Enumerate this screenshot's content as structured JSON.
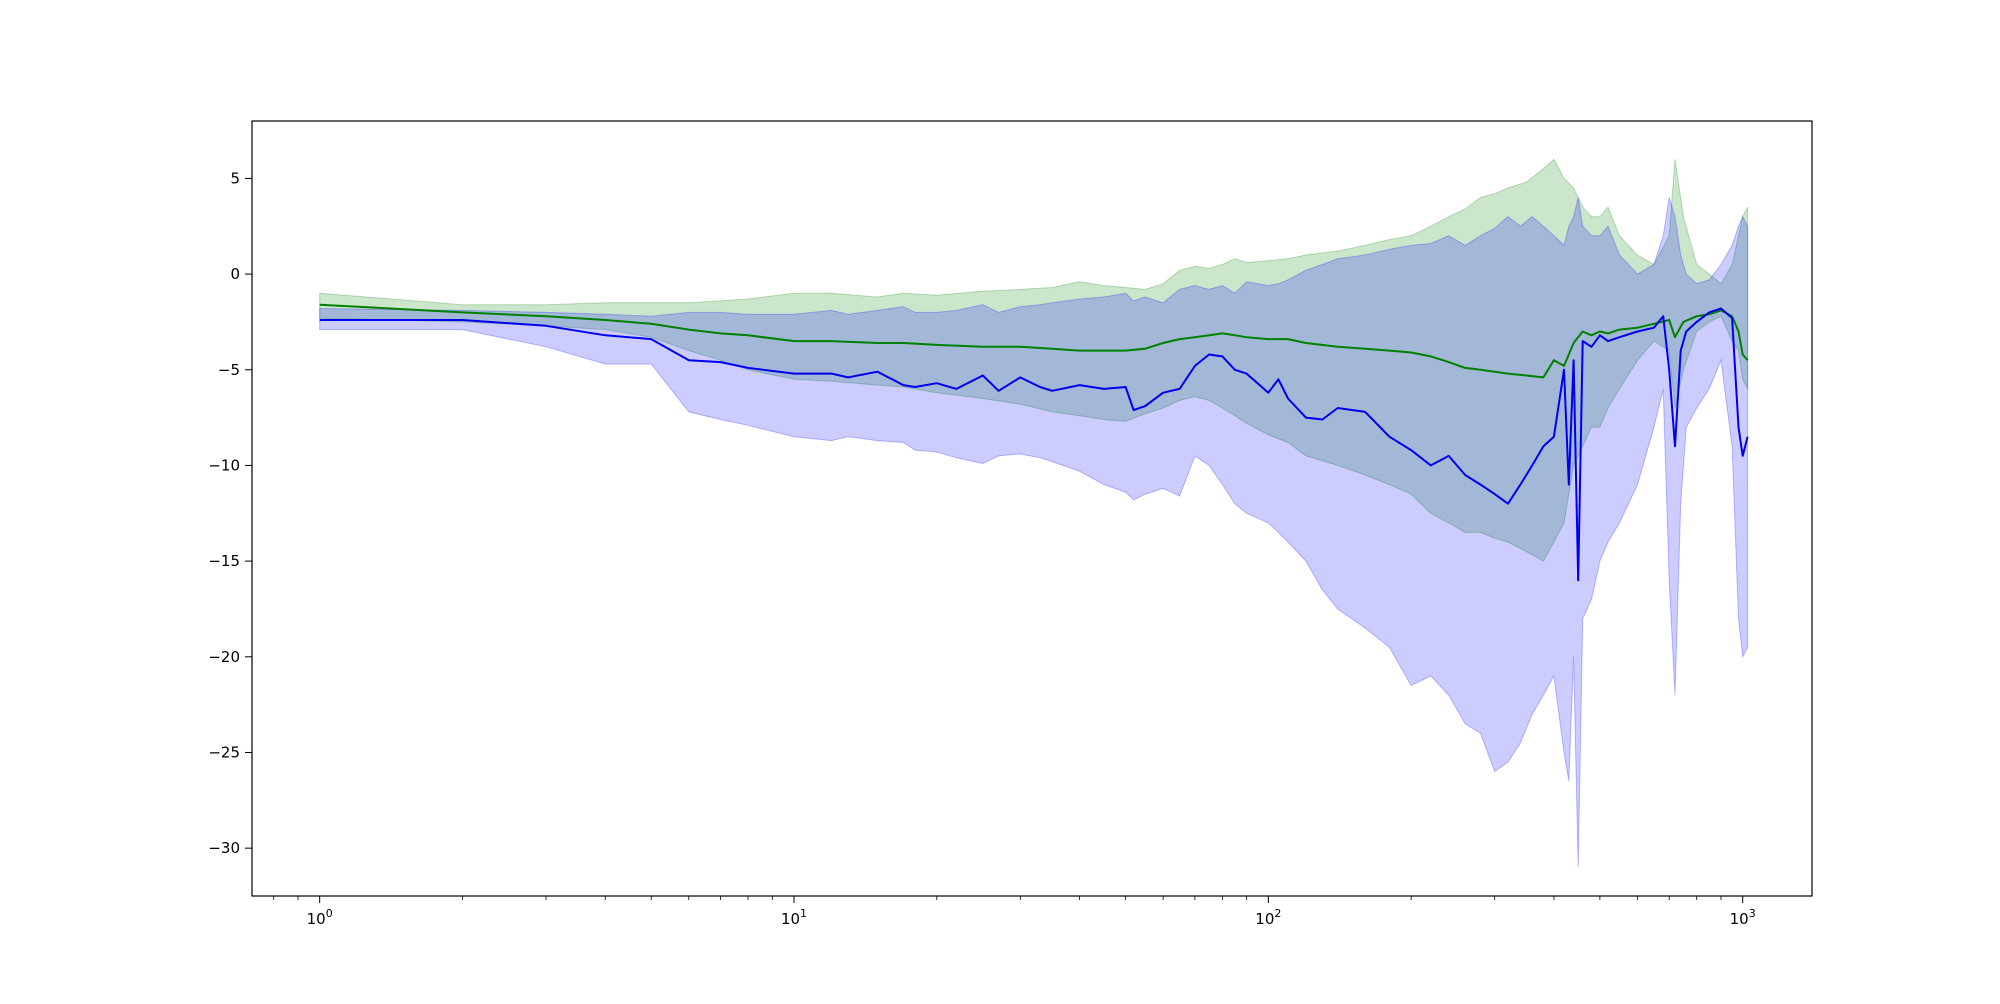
{
  "chart_data": {
    "type": "line",
    "title": "",
    "xlabel": "",
    "ylabel": "",
    "xscale": "log",
    "xlim": [
      0.72,
      1400
    ],
    "ylim": [
      -32.5,
      8
    ],
    "grid": false,
    "legend": "none",
    "x_ticks": [
      {
        "value": 1,
        "base": "10",
        "exp": "0"
      },
      {
        "value": 10,
        "base": "10",
        "exp": "1"
      },
      {
        "value": 100,
        "base": "10",
        "exp": "2"
      },
      {
        "value": 1000,
        "base": "10",
        "exp": "3"
      }
    ],
    "y_ticks": [
      {
        "value": 5,
        "label": "5"
      },
      {
        "value": 0,
        "label": "0"
      },
      {
        "value": -5,
        "label": "−5"
      },
      {
        "value": -10,
        "label": "−10"
      },
      {
        "value": -15,
        "label": "−15"
      },
      {
        "value": -20,
        "label": "−20"
      },
      {
        "value": -25,
        "label": "−25"
      },
      {
        "value": -30,
        "label": "−30"
      }
    ],
    "series": [
      {
        "color": "#008000",
        "band_color": "#008000",
        "band_opacity": 0.2,
        "x": [
          1,
          2,
          3,
          4,
          5,
          6,
          7,
          8,
          10,
          12,
          15,
          17,
          20,
          25,
          30,
          35,
          40,
          45,
          50,
          55,
          60,
          65,
          70,
          75,
          80,
          85,
          90,
          100,
          110,
          120,
          140,
          160,
          180,
          200,
          220,
          240,
          260,
          280,
          300,
          320,
          350,
          380,
          400,
          420,
          440,
          460,
          480,
          500,
          520,
          550,
          600,
          650,
          700,
          720,
          750,
          800,
          850,
          900,
          950,
          980,
          1000,
          1024
        ],
        "y": [
          -1.6,
          -2.0,
          -2.2,
          -2.4,
          -2.6,
          -2.9,
          -3.1,
          -3.2,
          -3.5,
          -3.5,
          -3.6,
          -3.6,
          -3.7,
          -3.8,
          -3.8,
          -3.9,
          -4.0,
          -4.0,
          -4.0,
          -3.9,
          -3.6,
          -3.4,
          -3.3,
          -3.2,
          -3.1,
          -3.2,
          -3.3,
          -3.4,
          -3.4,
          -3.6,
          -3.8,
          -3.9,
          -4.0,
          -4.1,
          -4.3,
          -4.6,
          -4.9,
          -5.0,
          -5.1,
          -5.2,
          -5.3,
          -5.4,
          -4.5,
          -4.8,
          -3.6,
          -3.0,
          -3.2,
          -3.0,
          -3.1,
          -2.9,
          -2.8,
          -2.6,
          -2.4,
          -3.3,
          -2.5,
          -2.2,
          -2.1,
          -1.9,
          -2.2,
          -3.0,
          -4.2,
          -4.5
        ],
        "y_low": [
          -2.3,
          -2.5,
          -2.7,
          -2.9,
          -3.3,
          -4.0,
          -4.5,
          -5.0,
          -5.5,
          -5.6,
          -5.8,
          -5.9,
          -6.2,
          -6.5,
          -6.8,
          -7.2,
          -7.4,
          -7.6,
          -7.7,
          -7.3,
          -7.0,
          -6.6,
          -6.4,
          -6.6,
          -7.0,
          -7.4,
          -7.8,
          -8.4,
          -8.8,
          -9.5,
          -10.0,
          -10.5,
          -11.0,
          -11.5,
          -12.5,
          -13.0,
          -13.5,
          -13.5,
          -13.8,
          -14.0,
          -14.5,
          -15.0,
          -14.0,
          -13.0,
          -10.0,
          -9.0,
          -8.0,
          -8.0,
          -7.0,
          -6.0,
          -4.5,
          -3.5,
          -4.0,
          -7.0,
          -5.0,
          -3.0,
          -2.5,
          -2.2,
          -3.5,
          -4.0,
          -5.5,
          -6.0
        ],
        "y_high": [
          -1.0,
          -1.6,
          -1.6,
          -1.5,
          -1.5,
          -1.5,
          -1.4,
          -1.3,
          -1.0,
          -1.0,
          -1.2,
          -1.0,
          -1.1,
          -0.9,
          -0.8,
          -0.7,
          -0.4,
          -0.6,
          -0.7,
          -0.8,
          -0.5,
          0.2,
          0.4,
          0.3,
          0.5,
          0.8,
          0.6,
          0.7,
          0.8,
          1.0,
          1.2,
          1.5,
          1.8,
          2.0,
          2.5,
          3.0,
          3.4,
          4.0,
          4.2,
          4.5,
          4.8,
          5.5,
          6.0,
          5.0,
          4.5,
          3.5,
          3.0,
          3.0,
          3.5,
          2.0,
          1.0,
          0.5,
          2.0,
          6.0,
          3.0,
          0.5,
          0.0,
          -0.5,
          0.5,
          2.0,
          3.0,
          3.5
        ]
      },
      {
        "color": "#0000ee",
        "band_color": "#0000ff",
        "band_opacity": 0.2,
        "x": [
          1,
          2,
          3,
          4,
          5,
          6,
          7,
          8,
          10,
          12,
          13,
          15,
          17,
          18,
          20,
          22,
          25,
          27,
          30,
          33,
          35,
          40,
          45,
          50,
          52,
          55,
          60,
          65,
          70,
          75,
          80,
          85,
          90,
          100,
          105,
          110,
          120,
          130,
          140,
          160,
          180,
          200,
          220,
          240,
          260,
          280,
          300,
          320,
          340,
          360,
          380,
          400,
          420,
          430,
          440,
          450,
          460,
          480,
          500,
          520,
          550,
          600,
          650,
          680,
          700,
          720,
          740,
          760,
          800,
          850,
          900,
          950,
          980,
          1000,
          1024
        ],
        "y": [
          -2.4,
          -2.4,
          -2.7,
          -3.2,
          -3.4,
          -4.5,
          -4.6,
          -4.9,
          -5.2,
          -5.2,
          -5.4,
          -5.1,
          -5.8,
          -5.9,
          -5.7,
          -6.0,
          -5.3,
          -6.1,
          -5.4,
          -5.9,
          -6.1,
          -5.8,
          -6.0,
          -5.9,
          -7.1,
          -6.9,
          -6.2,
          -6.0,
          -4.8,
          -4.2,
          -4.3,
          -5.0,
          -5.2,
          -6.2,
          -5.5,
          -6.5,
          -7.5,
          -7.6,
          -7.0,
          -7.2,
          -8.5,
          -9.2,
          -10.0,
          -9.5,
          -10.5,
          -11.0,
          -11.5,
          -12.0,
          -11.0,
          -10.0,
          -9.0,
          -8.5,
          -5.0,
          -11.0,
          -4.5,
          -16.0,
          -3.5,
          -3.8,
          -3.2,
          -3.5,
          -3.3,
          -3.0,
          -2.8,
          -2.2,
          -5.0,
          -9.0,
          -4.0,
          -3.0,
          -2.5,
          -2.0,
          -1.8,
          -2.3,
          -8.0,
          -9.5,
          -8.5
        ],
        "y_low": [
          -2.9,
          -2.9,
          -3.8,
          -4.7,
          -4.7,
          -7.2,
          -7.6,
          -7.9,
          -8.5,
          -8.7,
          -8.5,
          -8.7,
          -8.8,
          -9.2,
          -9.3,
          -9.6,
          -9.9,
          -9.5,
          -9.4,
          -9.6,
          -9.8,
          -10.3,
          -11.0,
          -11.4,
          -11.8,
          -11.5,
          -11.2,
          -11.6,
          -9.5,
          -10.0,
          -11.0,
          -12.0,
          -12.5,
          -13.0,
          -13.5,
          -14.0,
          -15.0,
          -16.5,
          -17.5,
          -18.5,
          -19.5,
          -21.5,
          -21.0,
          -22.0,
          -23.5,
          -24.0,
          -26.0,
          -25.5,
          -24.5,
          -23.0,
          -22.0,
          -21.0,
          -25.0,
          -26.5,
          -20.0,
          -31.0,
          -18.0,
          -17.0,
          -15.0,
          -14.0,
          -13.0,
          -11.0,
          -8.0,
          -6.0,
          -16.0,
          -22.0,
          -12.0,
          -8.0,
          -7.0,
          -6.0,
          -4.5,
          -9.0,
          -18.0,
          -20.0,
          -19.5
        ],
        "y_high": [
          -1.8,
          -1.9,
          -2.0,
          -2.1,
          -2.2,
          -2.0,
          -2.0,
          -2.1,
          -2.1,
          -1.9,
          -2.1,
          -1.9,
          -1.7,
          -2.0,
          -2.0,
          -1.9,
          -1.6,
          -2.0,
          -1.7,
          -1.6,
          -1.5,
          -1.3,
          -1.2,
          -1.0,
          -1.4,
          -1.2,
          -1.5,
          -0.8,
          -0.6,
          -0.8,
          -0.6,
          -1.0,
          -0.4,
          -0.6,
          -0.5,
          -0.3,
          0.2,
          0.5,
          0.8,
          1.0,
          1.3,
          1.5,
          1.6,
          2.0,
          1.5,
          2.0,
          2.4,
          3.0,
          2.5,
          3.0,
          2.5,
          2.0,
          1.5,
          2.5,
          3.0,
          4.0,
          2.5,
          2.0,
          2.0,
          2.5,
          1.0,
          0.0,
          0.5,
          2.0,
          4.0,
          3.0,
          1.0,
          0.0,
          -0.5,
          -0.3,
          0.5,
          1.5,
          2.5,
          3.0,
          2.5
        ]
      }
    ]
  }
}
